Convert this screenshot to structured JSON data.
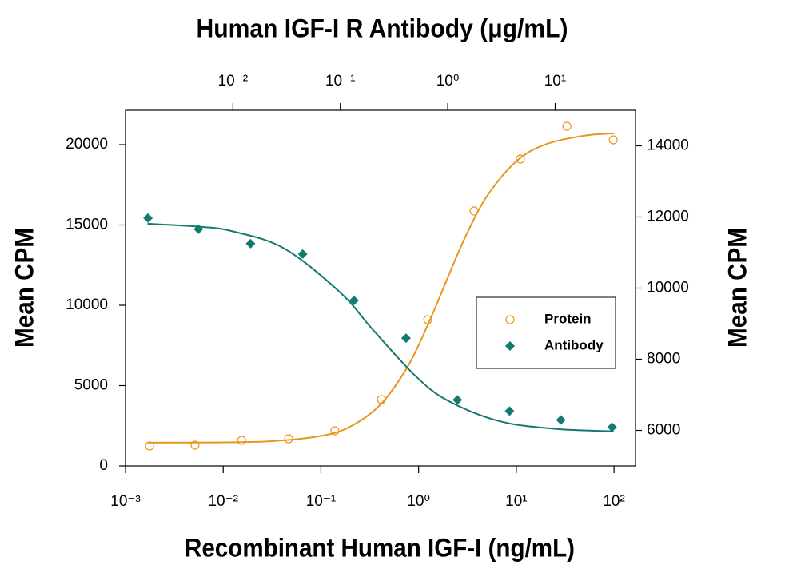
{
  "chart_data": {
    "type": "scatter",
    "xlabel": "Recombinant Human IGF-I (ng/mL)",
    "x2label": "Human IGF-I R Antibody (μg/mL)",
    "ylabel": "Mean CPM",
    "y2label": "Mean CPM",
    "xscale": "log",
    "x2scale": "log",
    "xlim": [
      0.001,
      166
    ],
    "xticks": [
      {
        "value": 0.001,
        "label": "10⁻³"
      },
      {
        "value": 0.01,
        "label": "10⁻²"
      },
      {
        "value": 0.1,
        "label": "10⁻¹"
      },
      {
        "value": 1,
        "label": "10⁰"
      },
      {
        "value": 10,
        "label": "10¹"
      },
      {
        "value": 100,
        "label": "10²"
      }
    ],
    "x2lim": [
      0.001,
      56
    ],
    "x2ticks": [
      {
        "value": 0.01,
        "label": "10⁻²"
      },
      {
        "value": 0.1,
        "label": "10⁻¹"
      },
      {
        "value": 1,
        "label": "10⁰"
      },
      {
        "value": 10,
        "label": "10¹"
      }
    ],
    "ylim": [
      0,
      22140
    ],
    "yticks": [
      0,
      5000,
      10000,
      15000,
      20000
    ],
    "y2lim": [
      5000,
      15000
    ],
    "y2ticks": [
      6000,
      8000,
      10000,
      12000,
      14000
    ],
    "legend": "center right",
    "series": [
      {
        "name": "Protein",
        "color": "#e8961e",
        "marker": "open-circle",
        "xaxis": "x",
        "axis": "y",
        "x": [
          0.00176,
          0.00515,
          0.0154,
          0.0467,
          0.139,
          0.416,
          1.24,
          3.7,
          11.0,
          32.9,
          98.2
        ],
        "values": [
          1244,
          1294,
          1592,
          1692,
          2189,
          4129,
          9104,
          15871,
          19104,
          21144,
          20299
        ],
        "fit": {
          "x": [
            0.0017,
            0.005,
            0.01,
            0.03,
            0.1,
            0.2,
            0.4,
            0.7,
            1,
            1.5,
            2,
            3,
            5,
            10,
            20,
            50,
            100
          ],
          "values": [
            1452,
            1458,
            1470,
            1536,
            1864,
            2452,
            3770,
            5750,
            7516,
            9937,
            11764,
            14239,
            16786,
            18964,
            20020,
            20561,
            20704
          ]
        }
      },
      {
        "name": "Antibody",
        "color": "#137a72",
        "marker": "diamond",
        "xaxis": "x2",
        "axis": "y2",
        "x": [
          0.00162,
          0.00478,
          0.0146,
          0.0446,
          0.134,
          0.409,
          1.23,
          3.76,
          11.3,
          33.9
        ],
        "values": [
          11972,
          11656,
          11251,
          10958,
          9651,
          8592,
          6856,
          6541,
          6293,
          6090
        ],
        "fit": {
          "x": [
            0.0016,
            0.005,
            0.01,
            0.03,
            0.1,
            0.2,
            0.5,
            1,
            3,
            10,
            35
          ],
          "values": [
            11811,
            11725,
            11596,
            11115,
            9873,
            8836,
            7532,
            6836,
            6262,
            6042,
            5975
          ]
        }
      }
    ]
  }
}
